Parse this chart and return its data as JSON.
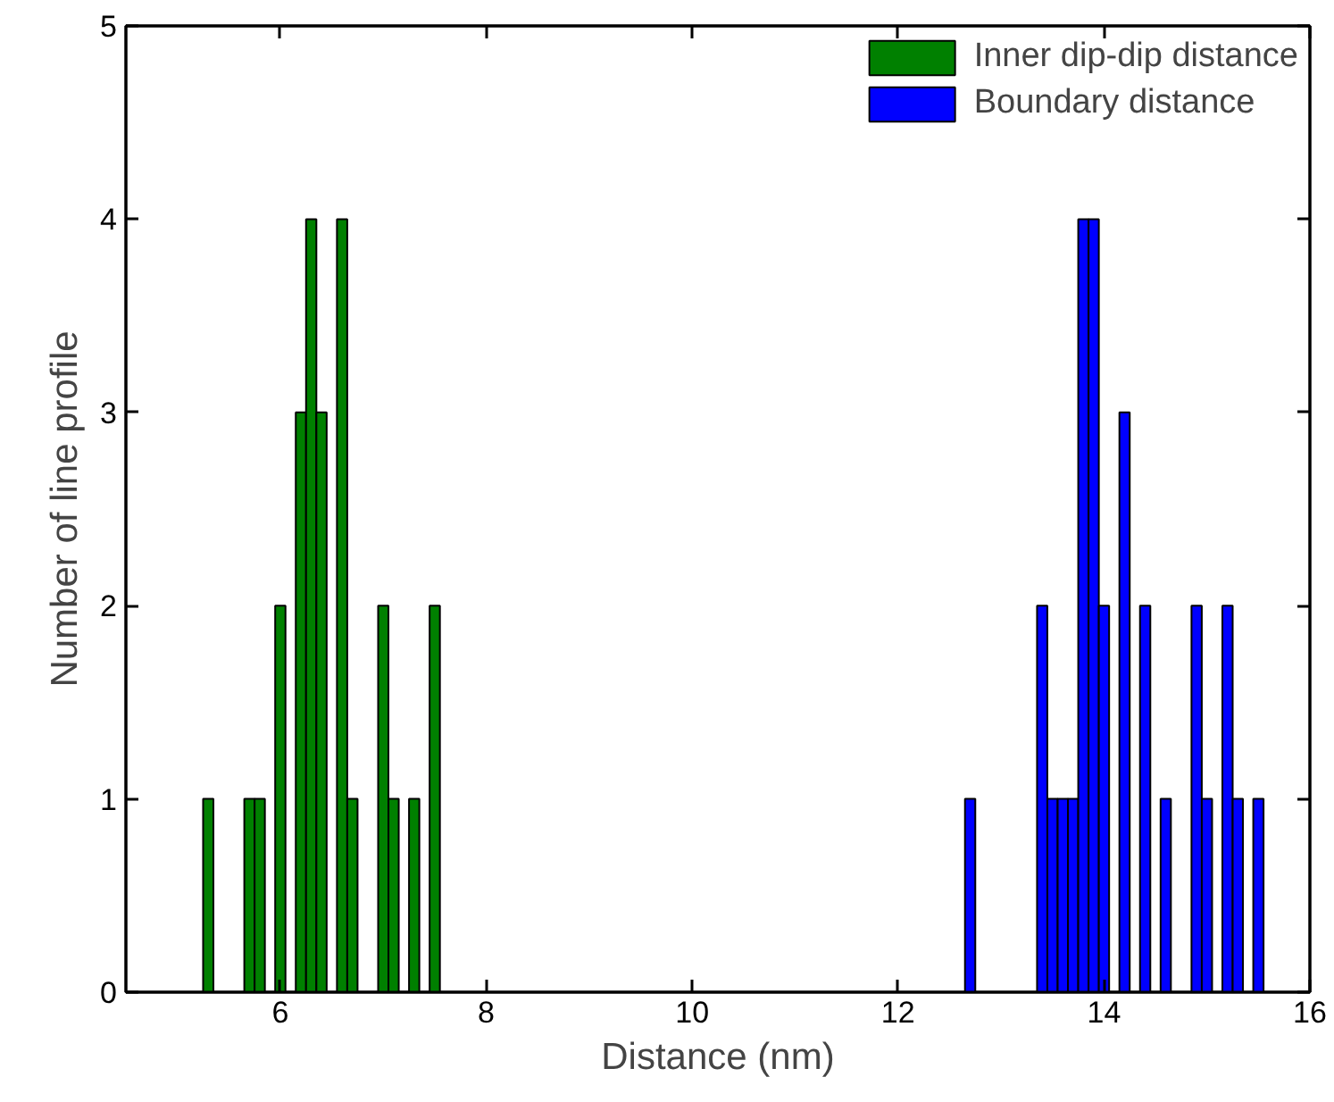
{
  "chart_data": {
    "type": "histogram",
    "xlabel": "Distance (nm)",
    "ylabel": "Number of line profile",
    "xlim": [
      4.5,
      16
    ],
    "xticks": [
      6,
      8,
      10,
      12,
      14,
      16
    ],
    "ylim": [
      0,
      5
    ],
    "yticks": [
      0,
      1,
      2,
      3,
      4,
      5
    ],
    "grid": false,
    "legend": "top right",
    "bins": [
      5.25,
      5.35,
      5.45,
      5.55,
      5.65,
      5.75,
      5.85,
      5.95,
      6.05,
      6.15,
      6.25,
      6.35,
      6.45,
      6.55,
      6.65,
      6.75,
      6.85,
      6.95,
      7.05,
      7.15,
      7.25,
      7.35,
      7.45,
      7.55,
      7.65,
      7.75,
      7.85,
      7.95,
      8.05,
      8.15,
      8.25,
      8.35,
      8.45,
      8.55,
      8.65,
      8.75,
      8.85,
      8.95,
      9.05,
      9.15,
      9.25,
      9.35,
      9.45,
      9.55,
      9.65,
      9.75,
      9.85,
      9.95,
      10.05,
      10.15,
      10.25,
      10.35,
      10.45,
      10.55,
      10.65,
      10.75,
      10.85,
      10.95,
      11.05,
      11.15,
      11.25,
      11.35,
      11.45,
      11.55,
      11.65,
      11.75,
      11.85,
      11.95,
      12.05,
      12.15,
      12.25,
      12.35,
      12.45,
      12.55,
      12.65,
      12.75,
      12.85,
      12.95,
      13.05,
      13.15,
      13.25,
      13.35,
      13.45,
      13.55,
      13.65,
      13.75,
      13.85,
      13.95,
      14.05,
      14.15,
      14.25,
      14.35,
      14.45,
      14.55,
      14.65,
      14.75,
      14.85,
      14.95,
      15.05,
      15.15,
      15.25,
      15.35,
      15.45,
      15.55
    ],
    "series": [
      {
        "name": "Inner dip-dip distance",
        "color": "#008000",
        "values": [
          1,
          0,
          0,
          0,
          1,
          1,
          0,
          2,
          0,
          3,
          4,
          3,
          0,
          4,
          1,
          0,
          0,
          2,
          1,
          0,
          1,
          0,
          2,
          0,
          0,
          0,
          0,
          0,
          0,
          0,
          0,
          0,
          0,
          0,
          0,
          0,
          0,
          0,
          0,
          0,
          0,
          0,
          0,
          0,
          0,
          0,
          0,
          0,
          0,
          0,
          0,
          0,
          0,
          0,
          0,
          0,
          0,
          0,
          0,
          0,
          0,
          0,
          0,
          0,
          0,
          0,
          0,
          0,
          0,
          0,
          0,
          0,
          0,
          0,
          0,
          0,
          0,
          0,
          0,
          0,
          0,
          0,
          0,
          0,
          0,
          0,
          0,
          0,
          0,
          0,
          0,
          0,
          0,
          0,
          0,
          0,
          0,
          0,
          0,
          0,
          0,
          0,
          0
        ]
      },
      {
        "name": "Boundary distance",
        "color": "#0000ff",
        "values": [
          0,
          0,
          0,
          0,
          0,
          0,
          0,
          0,
          0,
          0,
          0,
          0,
          0,
          0,
          0,
          0,
          0,
          0,
          0,
          0,
          0,
          0,
          0,
          0,
          0,
          0,
          0,
          0,
          0,
          0,
          0,
          0,
          0,
          0,
          0,
          0,
          0,
          0,
          0,
          0,
          0,
          0,
          0,
          0,
          0,
          0,
          0,
          0,
          0,
          0,
          0,
          0,
          0,
          0,
          0,
          0,
          0,
          0,
          0,
          0,
          0,
          0,
          0,
          0,
          0,
          0,
          0,
          0,
          0,
          0,
          0,
          0,
          0,
          0,
          1,
          0,
          0,
          0,
          0,
          0,
          0,
          2,
          1,
          1,
          1,
          4,
          4,
          2,
          0,
          3,
          0,
          2,
          0,
          1,
          0,
          0,
          2,
          1,
          0,
          2,
          1,
          0,
          1
        ]
      }
    ]
  }
}
